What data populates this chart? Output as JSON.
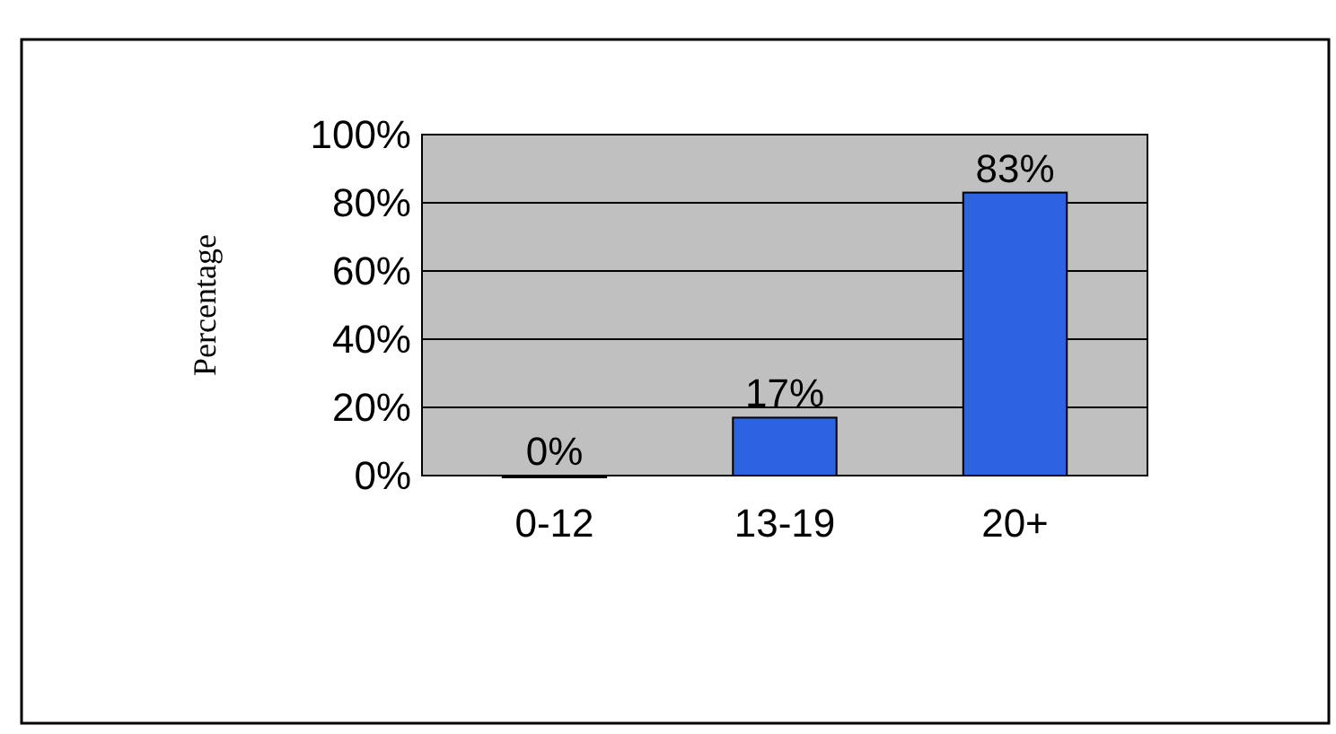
{
  "chart_data": {
    "type": "bar",
    "ylabel": "Percentage",
    "categories": [
      "0-12",
      "13-19",
      "20+"
    ],
    "values": [
      0,
      17,
      83
    ],
    "color": "#2b63e0",
    "value_labels": [
      "0%",
      "17%",
      "83%"
    ],
    "ylim": [
      0,
      100
    ],
    "yticks": [
      {
        "value": 0,
        "label": "0%"
      },
      {
        "value": 20,
        "label": "20%"
      },
      {
        "value": 40,
        "label": "40%"
      },
      {
        "value": 60,
        "label": "60%"
      },
      {
        "value": 80,
        "label": "80%"
      },
      {
        "value": 100,
        "label": "100%"
      }
    ],
    "grid": "y"
  }
}
